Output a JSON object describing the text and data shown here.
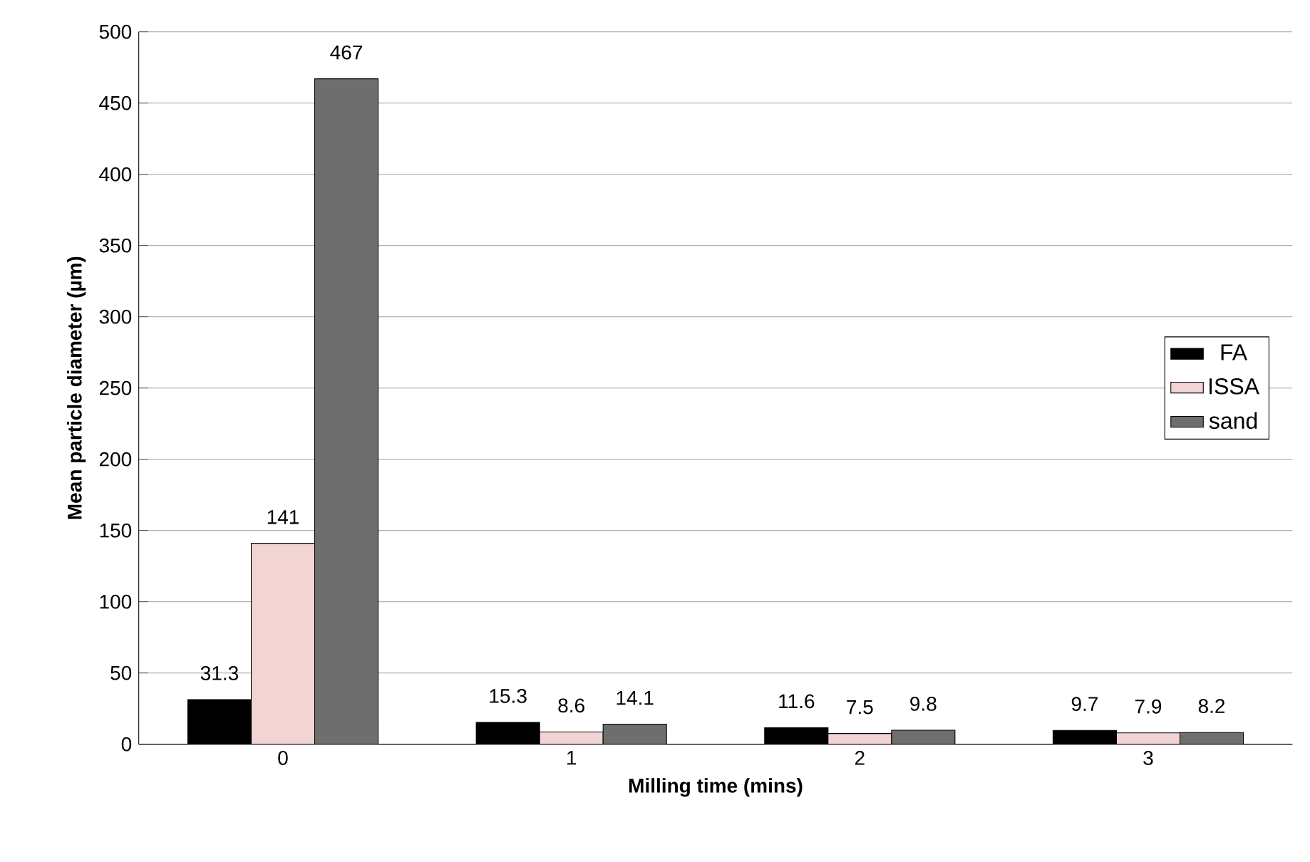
{
  "chart_data": {
    "type": "bar",
    "xlabel": "Milling time (mins)",
    "ylabel": "Mean particle diameter (µm)",
    "categories": [
      "0",
      "1",
      "2",
      "3"
    ],
    "series": [
      {
        "name": "FA",
        "color": "#000000",
        "values": [
          31.3,
          15.3,
          11.6,
          9.7
        ],
        "value_labels": [
          "31.3",
          "15.3",
          "11.6",
          "9.7"
        ]
      },
      {
        "name": "ISSA",
        "color": "#f2d4d4",
        "values": [
          141,
          8.6,
          7.5,
          7.9
        ],
        "value_labels": [
          "141",
          "8.6",
          "7.5",
          "7.9"
        ]
      },
      {
        "name": "sand",
        "color": "#6e6e6e",
        "values": [
          467,
          14.1,
          9.8,
          8.2
        ],
        "value_labels": [
          "467",
          "14.1",
          "9.8",
          "8.2"
        ]
      }
    ],
    "ylim": [
      0,
      500
    ],
    "yticks": [
      0,
      50,
      100,
      150,
      200,
      250,
      300,
      350,
      400,
      450,
      500
    ],
    "grid": "y",
    "legend": "right"
  }
}
